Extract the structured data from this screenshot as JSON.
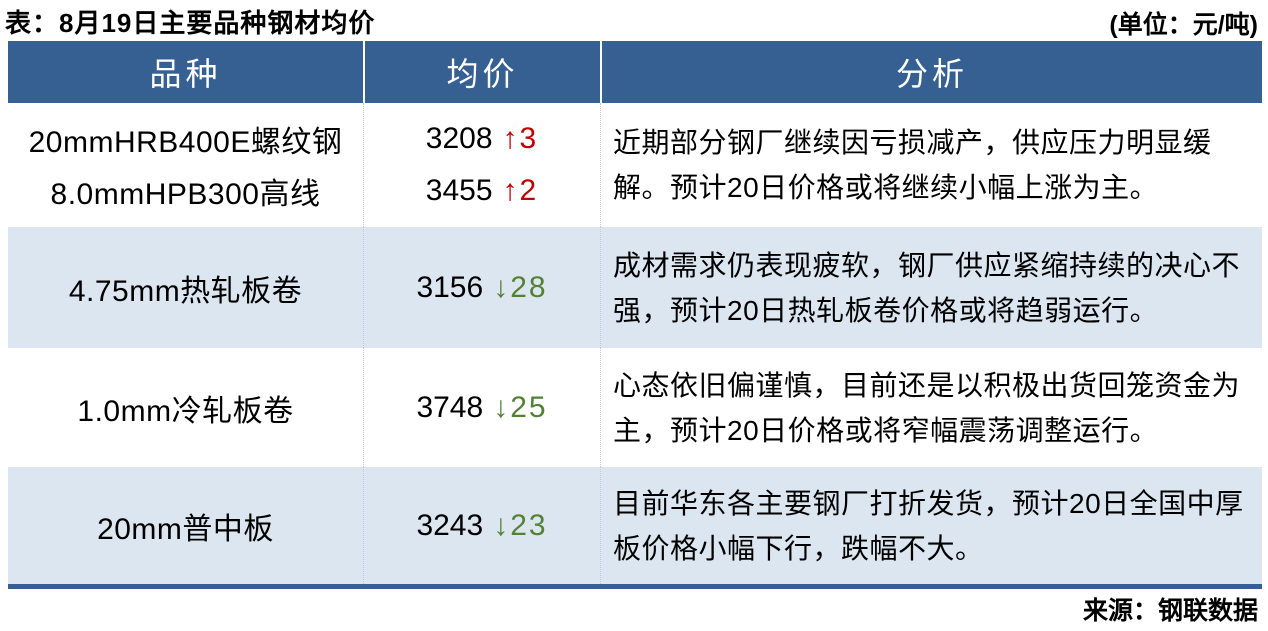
{
  "page": {
    "title": "表：8月19日主要品种钢材均价",
    "unit_note": "(单位：元/吨)",
    "source": "来源：钢联数据"
  },
  "table": {
    "headers": [
      "品种",
      "均价",
      "分析"
    ],
    "rows": [
      {
        "products": [
          {
            "name": "20mmHRB400E螺纹钢",
            "price": "3208",
            "arrow": "↑",
            "change": "3",
            "direction": "up"
          },
          {
            "name": "8.0mmHPB300高线",
            "price": "3455",
            "arrow": "↑",
            "change": "2",
            "direction": "up"
          }
        ],
        "analysis": "近期部分钢厂继续因亏损减产，供应压力明显缓解。预计20日价格或将继续小幅上涨为主。"
      },
      {
        "products": [
          {
            "name": "4.75mm热轧板卷",
            "price": "3156",
            "arrow": "↓",
            "change": "28",
            "direction": "down"
          }
        ],
        "analysis": "成材需求仍表现疲软，钢厂供应紧缩持续的决心不强，预计20日热轧板卷价格或将趋弱运行。"
      },
      {
        "products": [
          {
            "name": "1.0mm冷轧板卷",
            "price": "3748",
            "arrow": "↓",
            "change": "25",
            "direction": "down"
          }
        ],
        "analysis": "心态依旧偏谨慎，目前还是以积极出货回笼资金为主，预计20日价格或将窄幅震荡调整运行。"
      },
      {
        "products": [
          {
            "name": "20mm普中板",
            "price": "3243",
            "arrow": "↓",
            "change": "23",
            "direction": "down"
          }
        ],
        "analysis": "目前华东各主要钢厂打折发货，预计20日全国中厚板价格小幅下行，跌幅不大。"
      }
    ]
  },
  "colors": {
    "page_bg": "#ffffff",
    "header_bg": "#376092",
    "header_text": "#ffffff",
    "row_alt_bg": "#dce6f1",
    "up": "#c00000",
    "down": "#538135",
    "text": "#000000"
  }
}
